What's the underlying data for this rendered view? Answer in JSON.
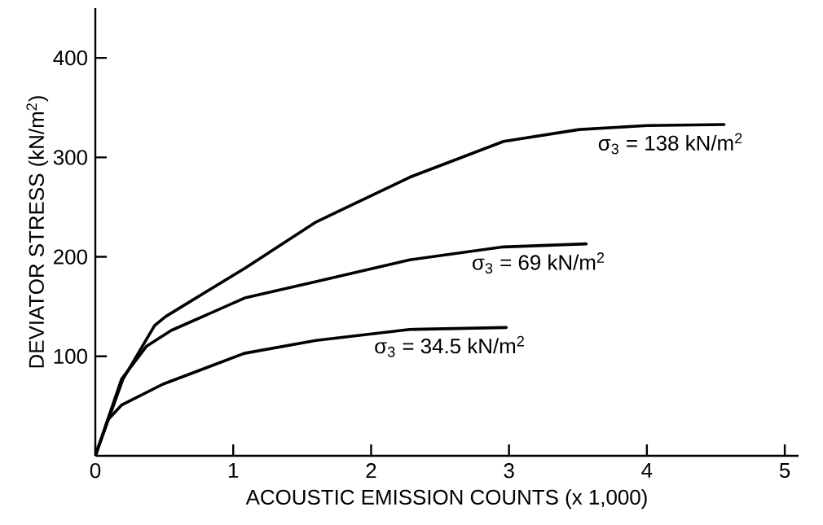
{
  "chart_data": {
    "type": "line",
    "xlabel": "ACOUSTIC EMISSION COUNTS   (x 1,000)",
    "ylabel": "DEVIATOR STRESS (kN/m$^{2}$)",
    "xlim": [
      0,
      5.1
    ],
    "ylim": [
      0,
      450
    ],
    "xticks": [
      0,
      1,
      2,
      3,
      4,
      5
    ],
    "yticks": [
      100,
      200,
      300,
      400
    ],
    "grid": false,
    "legend": false,
    "marker": "none",
    "line_style": "solid",
    "series": [
      {
        "name": "σ$_{3}$ = 138  kN/m$^{2}$",
        "color": "#000000",
        "x": [
          0,
          0.2,
          0.43,
          0.51,
          1.09,
          1.6,
          2.28,
          2.96,
          3.51,
          4.0,
          4.56
        ],
        "values": [
          0,
          77,
          131,
          140,
          189,
          235,
          280,
          316,
          328,
          332,
          333
        ]
      },
      {
        "name": "σ$_{3}$ = 69  kN/m$^{2}$",
        "color": "#000000",
        "x": [
          0,
          0.19,
          0.37,
          0.55,
          1.09,
          1.6,
          2.28,
          2.96,
          3.56
        ],
        "values": [
          0,
          77,
          110,
          126,
          159,
          175,
          197,
          210,
          213
        ]
      },
      {
        "name": "σ$_{3}$ = 34.5  kN/m$^{2}$",
        "color": "#000000",
        "x": [
          0,
          0.09,
          0.19,
          0.49,
          1.08,
          1.6,
          2.28,
          2.98
        ],
        "values": [
          0,
          36,
          51,
          72,
          103,
          116,
          127,
          129
        ]
      }
    ]
  }
}
